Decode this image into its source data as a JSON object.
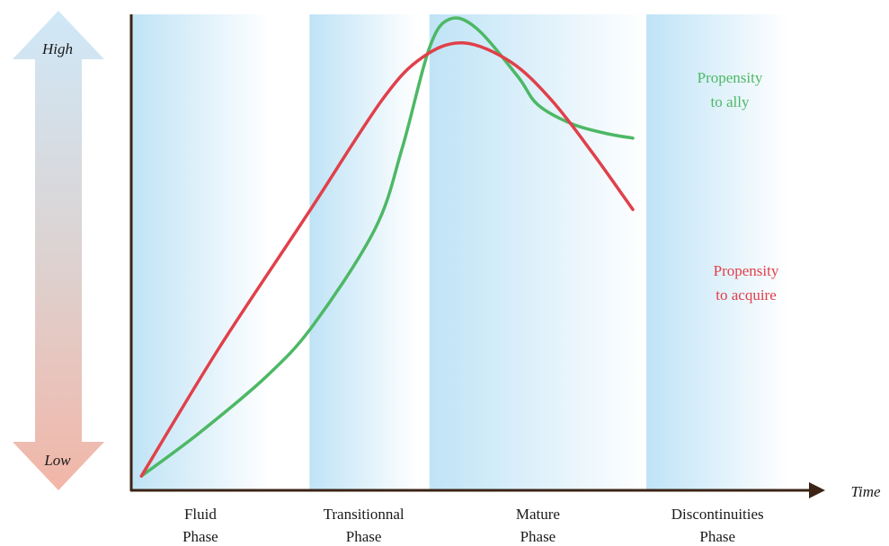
{
  "chart_data": {
    "type": "line",
    "title": "",
    "xlabel": "Time",
    "ylabel": "",
    "y_scale_labels": {
      "high": "High",
      "low": "Low"
    },
    "xlim": [
      0,
      100
    ],
    "ylim": [
      0,
      100
    ],
    "grid": false,
    "legend": "inline labels at right end of lines",
    "phases": [
      {
        "label_line1": "Fluid",
        "label_line2": "Phase",
        "start": 0,
        "end": 20.4
      },
      {
        "label_line1": "Transitionnal",
        "label_line2": "Phase",
        "start": 26.3,
        "end": 42.3
      },
      {
        "label_line1": "Mature",
        "label_line2": "Phase",
        "start": 44,
        "end": 76
      },
      {
        "label_line1": "Discontinuities",
        "label_line2": "Phase",
        "start": 76,
        "end": 97
      }
    ],
    "series": [
      {
        "name_line1": "Propensity",
        "name_line2": "to ally",
        "color": "#4db865",
        "points": [
          [
            1.5,
            3
          ],
          [
            10,
            12
          ],
          [
            20,
            24
          ],
          [
            27,
            35
          ],
          [
            36,
            55
          ],
          [
            40,
            72
          ],
          [
            44,
            93
          ],
          [
            47,
            99
          ],
          [
            51,
            97
          ],
          [
            57,
            87
          ],
          [
            60,
            81
          ],
          [
            65,
            77
          ],
          [
            70,
            75
          ],
          [
            74,
            74
          ]
        ]
      },
      {
        "name_line1": "Propensity",
        "name_line2": "to acquire",
        "color": "#e0404a",
        "points": [
          [
            1.5,
            3
          ],
          [
            13,
            30
          ],
          [
            26,
            58
          ],
          [
            37,
            82
          ],
          [
            43,
            91
          ],
          [
            49,
            94
          ],
          [
            56,
            90
          ],
          [
            62,
            82
          ],
          [
            68,
            71
          ],
          [
            74,
            59
          ]
        ]
      }
    ]
  },
  "colors": {
    "axis": "#3b2416",
    "phase_band": "#bfe3f6",
    "arrow_top": "#cfe8f8",
    "arrow_bottom": "#f2b6a8",
    "text": "#1a1a1a"
  }
}
